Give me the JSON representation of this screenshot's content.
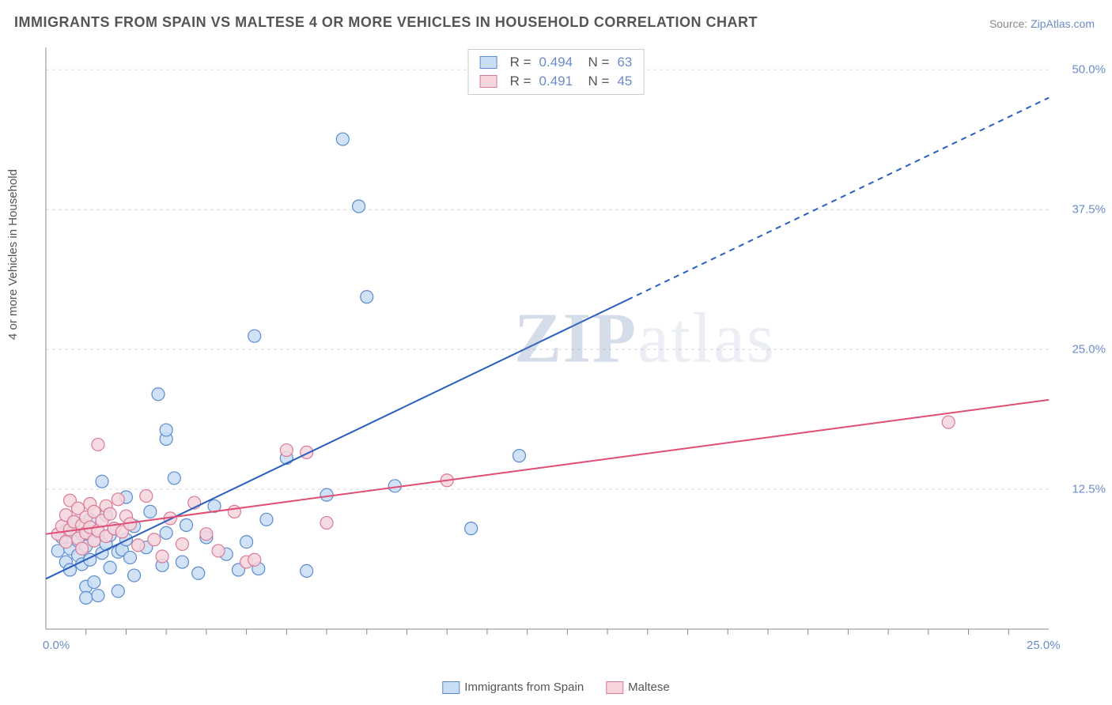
{
  "title": "IMMIGRANTS FROM SPAIN VS MALTESE 4 OR MORE VEHICLES IN HOUSEHOLD CORRELATION CHART",
  "source_label": "Source:",
  "source_value": "ZipAtlas.com",
  "y_axis_label": "4 or more Vehicles in Household",
  "watermark_bold": "ZIP",
  "watermark_rest": "atlas",
  "chart": {
    "type": "scatter",
    "background_color": "#ffffff",
    "grid_color": "#d8d8d8",
    "axis_color": "#888888",
    "xlim": [
      0,
      25
    ],
    "ylim": [
      0,
      52
    ],
    "x_ticks": [
      0,
      25
    ],
    "x_tick_labels": [
      "0.0%",
      "25.0%"
    ],
    "x_minor_ticks": [
      1,
      2,
      3,
      4,
      5,
      6,
      7,
      8,
      9,
      10,
      11,
      12,
      13,
      14,
      15,
      16,
      17,
      18,
      19,
      20,
      21,
      22,
      23,
      24
    ],
    "y_ticks": [
      12.5,
      25.0,
      37.5,
      50.0
    ],
    "y_tick_labels": [
      "12.5%",
      "25.0%",
      "37.5%",
      "50.0%"
    ],
    "series": [
      {
        "name": "Immigrants from Spain",
        "fill_color": "#c9ddf4",
        "stroke_color": "#5a8bd0",
        "line_color": "#2a5fbf",
        "line_width": 2,
        "line_dash_after_x": 14.5,
        "trend": {
          "x1": 0,
          "y1": 4.5,
          "x2": 25,
          "y2": 47.5
        },
        "marker_radius": 8,
        "legend": {
          "R": "0.494",
          "N": "63"
        },
        "points": [
          [
            0.3,
            7.0
          ],
          [
            0.4,
            8.2
          ],
          [
            0.5,
            6.0
          ],
          [
            0.5,
            8.8
          ],
          [
            0.6,
            7.2
          ],
          [
            0.6,
            5.3
          ],
          [
            0.7,
            9.5
          ],
          [
            0.8,
            6.6
          ],
          [
            0.8,
            7.9
          ],
          [
            0.9,
            8.5
          ],
          [
            0.9,
            5.8
          ],
          [
            1.0,
            7.4
          ],
          [
            1.0,
            3.8
          ],
          [
            1.0,
            2.8
          ],
          [
            1.1,
            6.2
          ],
          [
            1.1,
            9.8
          ],
          [
            1.2,
            7.9
          ],
          [
            1.2,
            4.2
          ],
          [
            1.3,
            8.7
          ],
          [
            1.3,
            3.0
          ],
          [
            1.4,
            6.8
          ],
          [
            1.4,
            13.2
          ],
          [
            1.5,
            7.6
          ],
          [
            1.5,
            10.2
          ],
          [
            1.6,
            5.5
          ],
          [
            1.6,
            8.4
          ],
          [
            1.7,
            9.0
          ],
          [
            1.8,
            6.9
          ],
          [
            1.8,
            3.4
          ],
          [
            1.9,
            7.1
          ],
          [
            2.0,
            8.0
          ],
          [
            2.0,
            11.8
          ],
          [
            2.1,
            6.4
          ],
          [
            2.2,
            9.2
          ],
          [
            2.2,
            4.8
          ],
          [
            2.5,
            7.3
          ],
          [
            2.6,
            10.5
          ],
          [
            2.8,
            21.0
          ],
          [
            2.9,
            5.7
          ],
          [
            3.0,
            8.6
          ],
          [
            3.0,
            17.0
          ],
          [
            3.0,
            17.8
          ],
          [
            3.2,
            13.5
          ],
          [
            3.4,
            6.0
          ],
          [
            3.5,
            9.3
          ],
          [
            3.8,
            5.0
          ],
          [
            4.0,
            8.2
          ],
          [
            4.2,
            11.0
          ],
          [
            4.5,
            6.7
          ],
          [
            4.8,
            5.3
          ],
          [
            5.0,
            7.8
          ],
          [
            5.2,
            26.2
          ],
          [
            5.3,
            5.4
          ],
          [
            5.5,
            9.8
          ],
          [
            6.0,
            15.3
          ],
          [
            6.5,
            5.2
          ],
          [
            7.0,
            12.0
          ],
          [
            7.4,
            43.8
          ],
          [
            7.8,
            37.8
          ],
          [
            8.0,
            29.7
          ],
          [
            8.7,
            12.8
          ],
          [
            10.6,
            9.0
          ],
          [
            11.8,
            15.5
          ]
        ]
      },
      {
        "name": "Maltese",
        "fill_color": "#f6d5dd",
        "stroke_color": "#d97a94",
        "line_color": "#e14d74",
        "line_width": 2,
        "trend": {
          "x1": 0,
          "y1": 8.5,
          "x2": 25,
          "y2": 20.5
        },
        "marker_radius": 8,
        "legend": {
          "R": "0.491",
          "N": "45"
        },
        "points": [
          [
            0.3,
            8.5
          ],
          [
            0.4,
            9.2
          ],
          [
            0.5,
            7.8
          ],
          [
            0.5,
            10.2
          ],
          [
            0.6,
            8.9
          ],
          [
            0.6,
            11.5
          ],
          [
            0.7,
            9.6
          ],
          [
            0.8,
            8.1
          ],
          [
            0.8,
            10.8
          ],
          [
            0.9,
            9.3
          ],
          [
            0.9,
            7.2
          ],
          [
            1.0,
            10.0
          ],
          [
            1.0,
            8.6
          ],
          [
            1.1,
            11.2
          ],
          [
            1.1,
            9.1
          ],
          [
            1.2,
            7.9
          ],
          [
            1.2,
            10.5
          ],
          [
            1.3,
            8.8
          ],
          [
            1.3,
            16.5
          ],
          [
            1.4,
            9.7
          ],
          [
            1.5,
            11.0
          ],
          [
            1.5,
            8.3
          ],
          [
            1.6,
            10.3
          ],
          [
            1.7,
            9.0
          ],
          [
            1.8,
            11.6
          ],
          [
            1.9,
            8.7
          ],
          [
            2.0,
            10.1
          ],
          [
            2.1,
            9.4
          ],
          [
            2.3,
            7.5
          ],
          [
            2.5,
            11.9
          ],
          [
            2.7,
            8.0
          ],
          [
            2.9,
            6.5
          ],
          [
            3.1,
            9.9
          ],
          [
            3.4,
            7.6
          ],
          [
            3.7,
            11.3
          ],
          [
            4.0,
            8.5
          ],
          [
            4.3,
            7.0
          ],
          [
            4.7,
            10.5
          ],
          [
            5.0,
            6.0
          ],
          [
            5.2,
            6.2
          ],
          [
            6.0,
            16.0
          ],
          [
            6.5,
            15.8
          ],
          [
            7.0,
            9.5
          ],
          [
            10.0,
            13.3
          ],
          [
            22.5,
            18.5
          ]
        ]
      }
    ]
  },
  "bottom_legend": [
    {
      "label": "Immigrants from Spain",
      "fill": "#c9ddf4",
      "stroke": "#5a8bd0"
    },
    {
      "label": "Maltese",
      "fill": "#f6d5dd",
      "stroke": "#d97a94"
    }
  ]
}
